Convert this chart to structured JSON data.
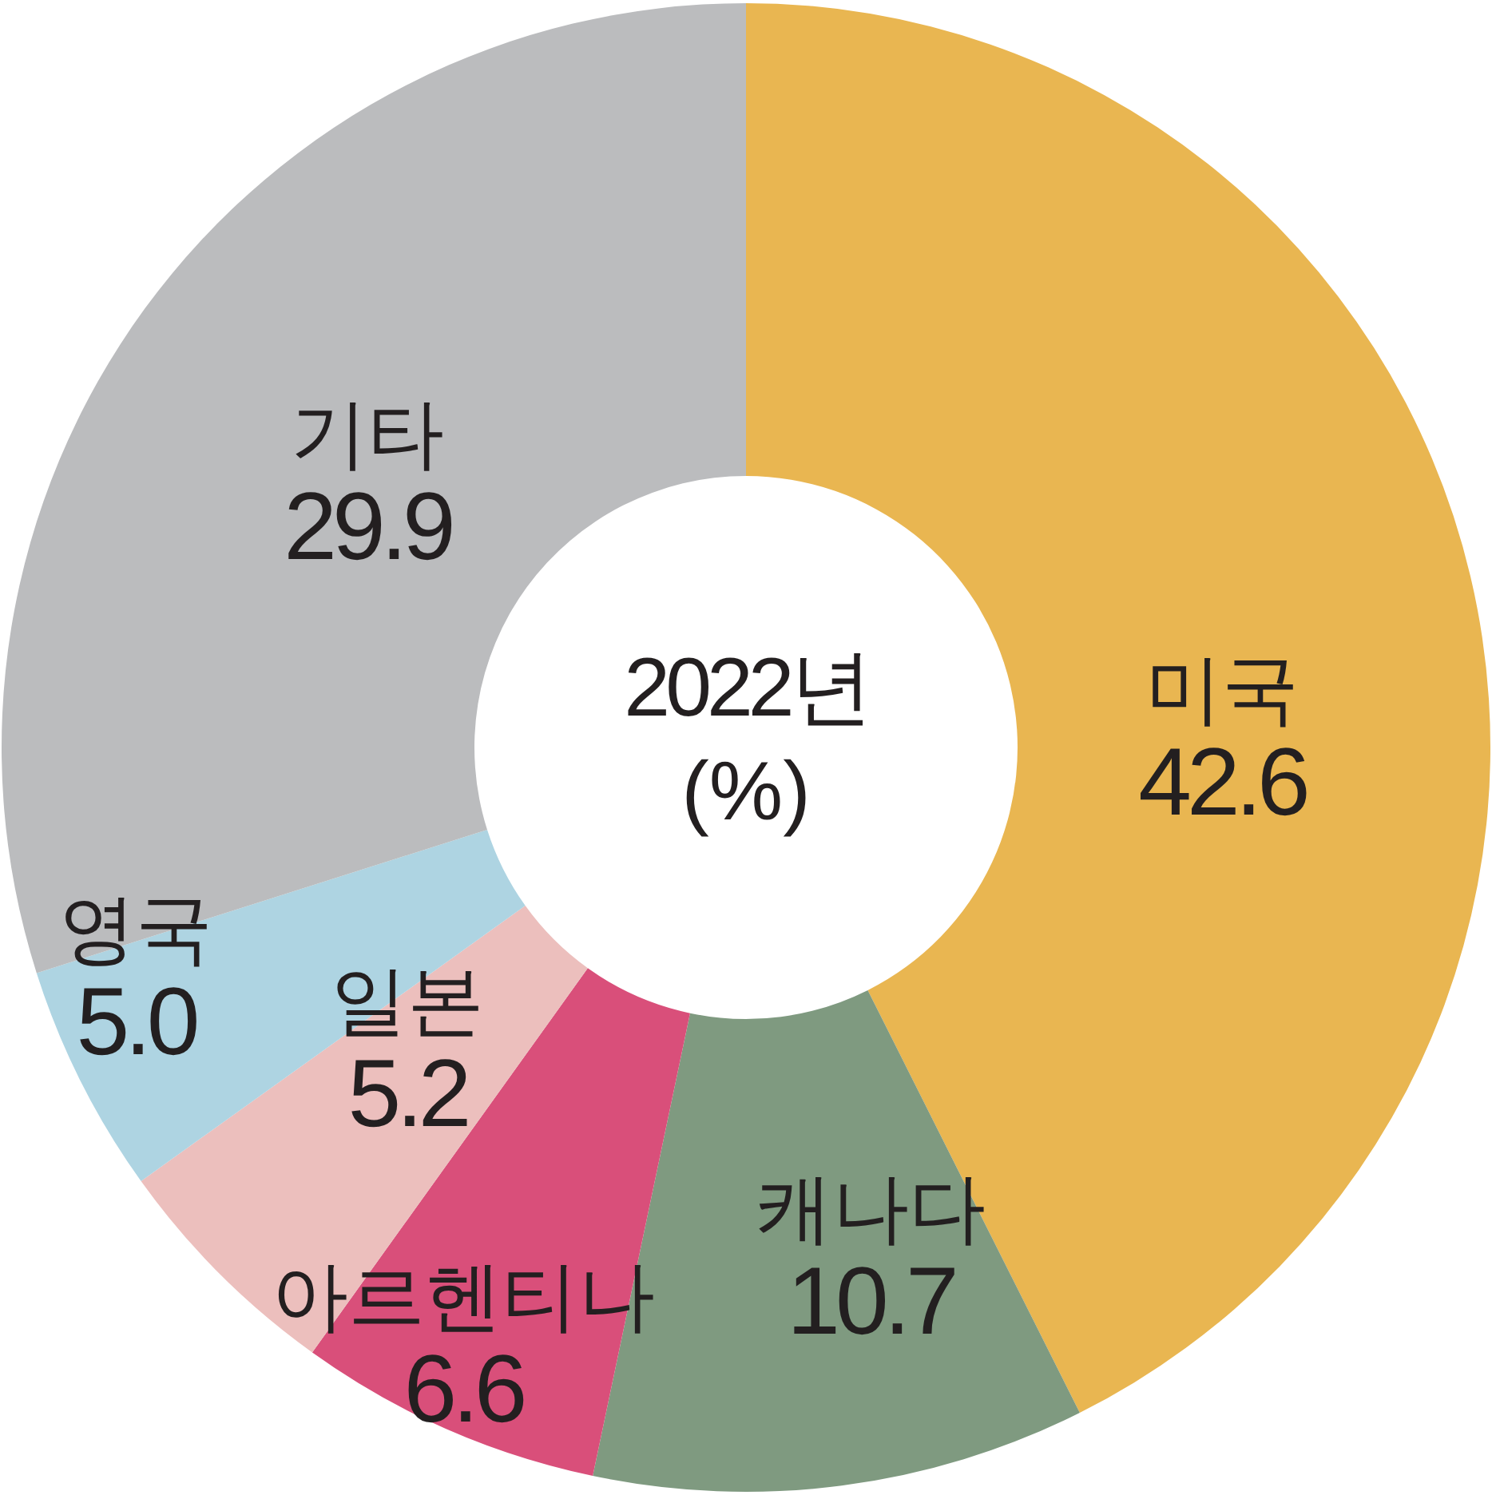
{
  "chart_data": {
    "type": "donut",
    "title": "2022년",
    "subtitle": "(%)",
    "categories": [
      "미국",
      "캐나다",
      "아르헨티나",
      "일본",
      "영국",
      "기타"
    ],
    "values": [
      42.6,
      10.7,
      6.6,
      5.2,
      5.0,
      29.9
    ],
    "value_labels": [
      "42.6",
      "10.7",
      "6.6",
      "5.2",
      "5.0",
      "29.9"
    ],
    "colors": [
      "#e9b651",
      "#7f9a80",
      "#d94f7a",
      "#ecbfbd",
      "#aed4e2",
      "#bbbcbe"
    ]
  }
}
